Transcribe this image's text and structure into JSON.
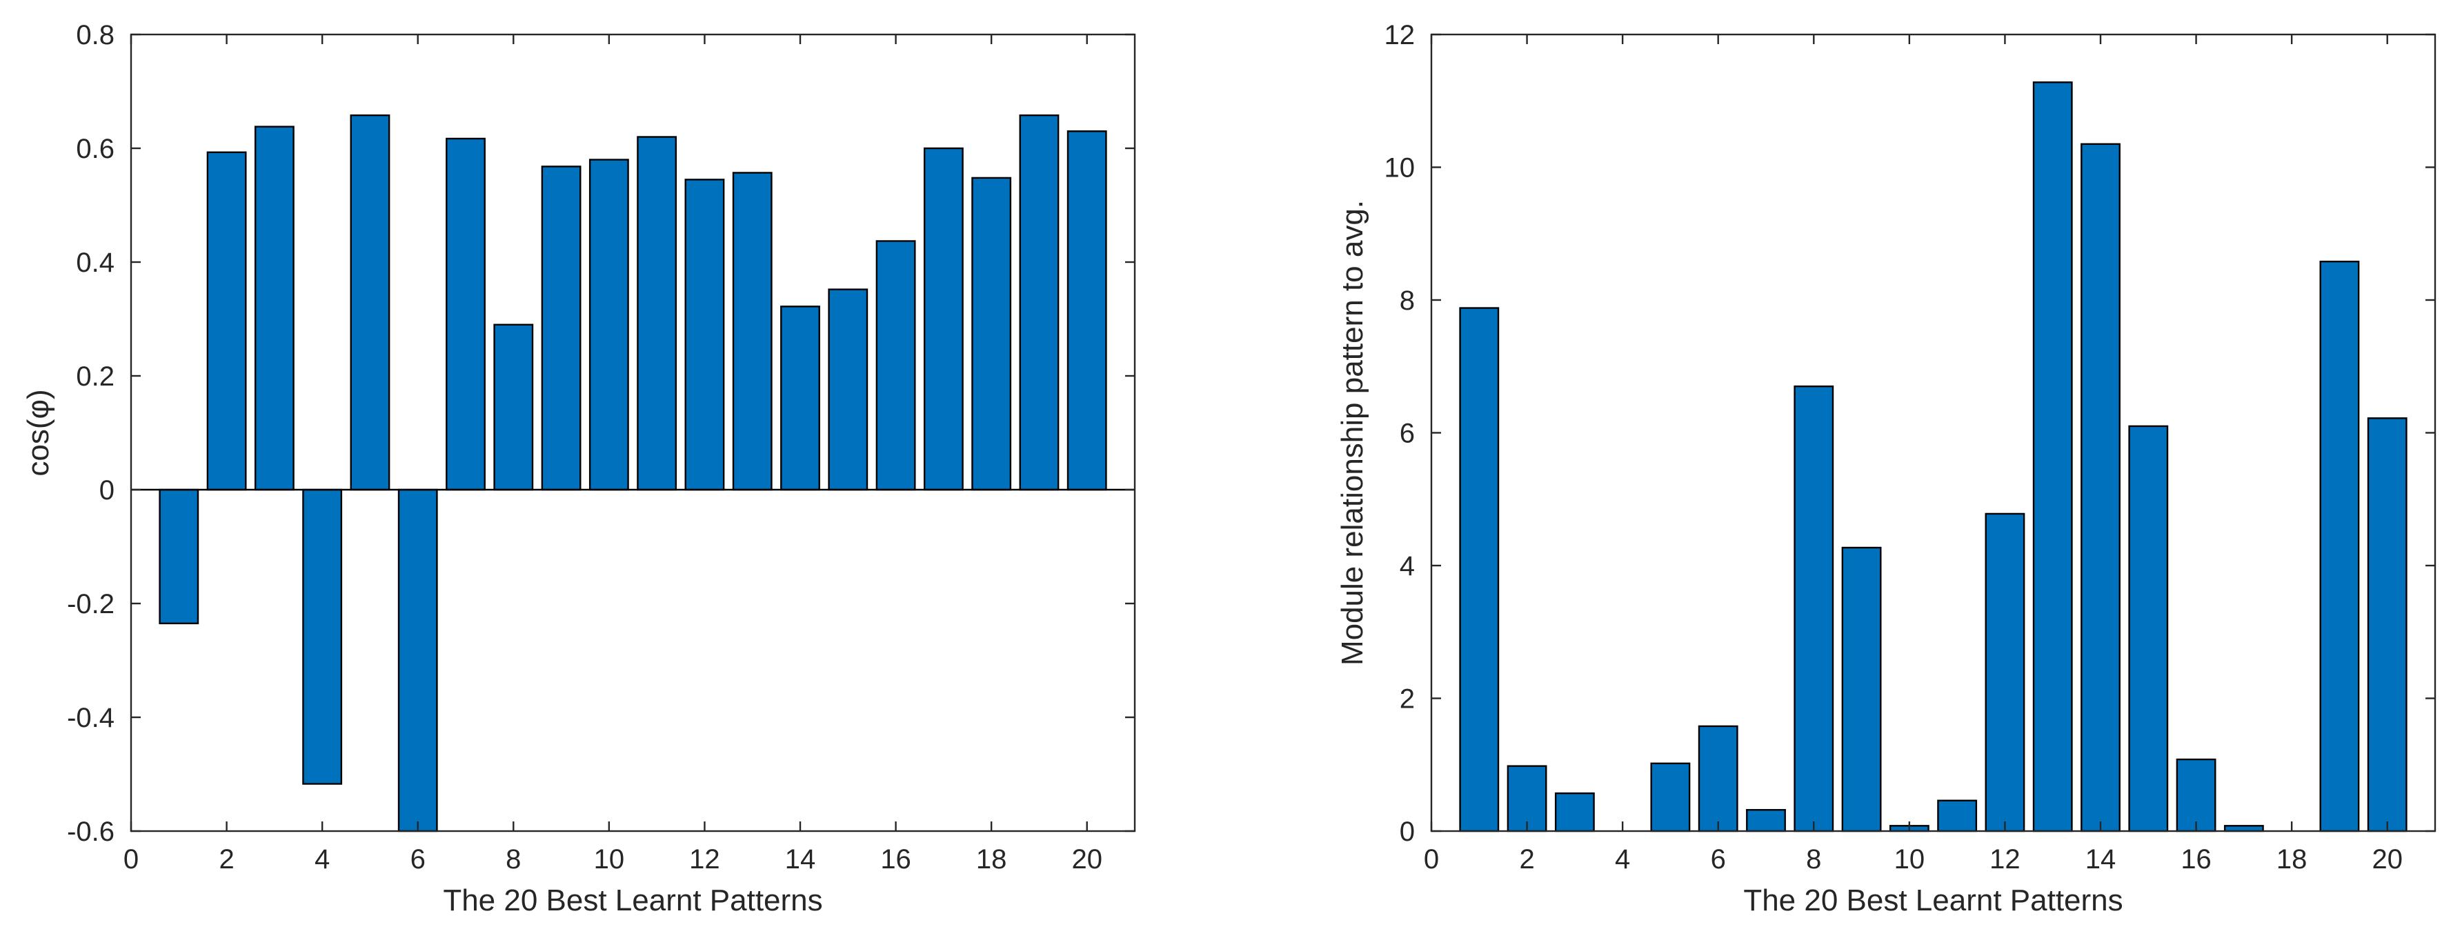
{
  "colors": {
    "bar_fill": "#0072BD",
    "bar_edge": "#000000",
    "axis": "#262626",
    "background": "#ffffff"
  },
  "chart_data": [
    {
      "type": "bar",
      "title": "",
      "xlabel": "The 20 Best Learnt Patterns",
      "ylabel": "cos(φ)",
      "xlim": [
        0,
        21
      ],
      "ylim": [
        -0.6,
        0.8
      ],
      "xticks": [
        0,
        2,
        4,
        6,
        8,
        10,
        12,
        14,
        16,
        18,
        20
      ],
      "xtick_labels": [
        "0",
        "2",
        "4",
        "6",
        "8",
        "10",
        "12",
        "14",
        "16",
        "18",
        "20"
      ],
      "yticks": [
        -0.6,
        -0.4,
        -0.2,
        0,
        0.2,
        0.4,
        0.6,
        0.8
      ],
      "ytick_labels": [
        "-0.6",
        "-0.4",
        "-0.2",
        "0",
        "0.2",
        "0.4",
        "0.6",
        "0.8"
      ],
      "zero_line": true,
      "x": [
        1,
        2,
        3,
        4,
        5,
        6,
        7,
        8,
        9,
        10,
        11,
        12,
        13,
        14,
        15,
        16,
        17,
        18,
        19,
        20
      ],
      "values": [
        -0.235,
        0.593,
        0.638,
        -0.517,
        0.658,
        -0.6,
        0.617,
        0.29,
        0.568,
        0.58,
        0.62,
        0.545,
        0.557,
        0.322,
        0.352,
        0.437,
        0.6,
        0.548,
        0.658,
        0.63
      ]
    },
    {
      "type": "bar",
      "title": "",
      "xlabel": "The 20 Best Learnt Patterns",
      "ylabel": "Module relationship pattern to avg.",
      "xlim": [
        0,
        21
      ],
      "ylim": [
        0,
        12
      ],
      "xticks": [
        0,
        2,
        4,
        6,
        8,
        10,
        12,
        14,
        16,
        18,
        20
      ],
      "xtick_labels": [
        "0",
        "2",
        "4",
        "6",
        "8",
        "10",
        "12",
        "14",
        "16",
        "18",
        "20"
      ],
      "yticks": [
        0,
        2,
        4,
        6,
        8,
        10,
        12
      ],
      "ytick_labels": [
        "0",
        "2",
        "4",
        "6",
        "8",
        "10",
        "12"
      ],
      "zero_line": false,
      "x": [
        1,
        2,
        3,
        4,
        5,
        6,
        7,
        8,
        9,
        10,
        11,
        12,
        13,
        14,
        15,
        16,
        17,
        18,
        19,
        20
      ],
      "values": [
        7.88,
        0.98,
        0.57,
        0,
        1.02,
        1.58,
        0.32,
        6.7,
        4.27,
        0.08,
        0.46,
        4.78,
        11.28,
        10.35,
        6.1,
        1.08,
        0.08,
        0,
        8.58,
        6.22
      ]
    }
  ]
}
